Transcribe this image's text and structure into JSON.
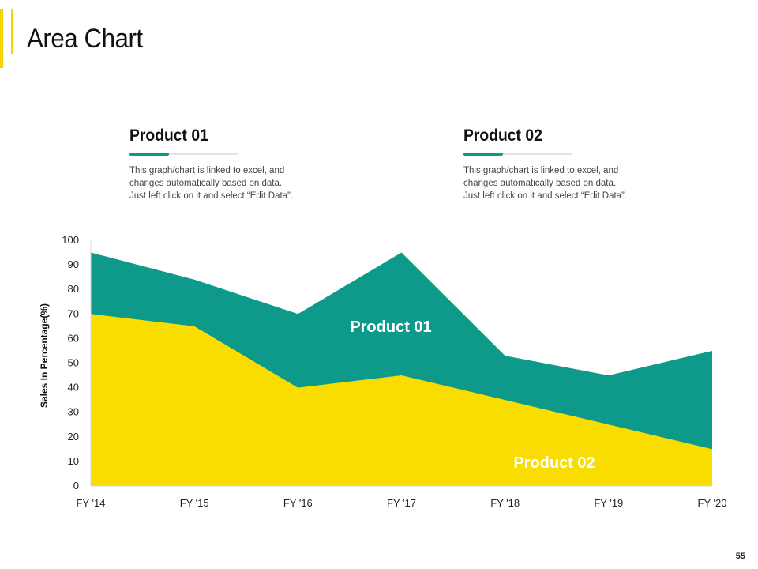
{
  "page": {
    "title": "Area Chart",
    "page_number": "55"
  },
  "info": [
    {
      "title": "Product 01",
      "line1": "This graph/chart is linked to excel, and",
      "line2": "changes automatically based on data.",
      "line3": "Just left click on it and select “Edit Data”."
    },
    {
      "title": "Product 02",
      "line1": "This graph/chart is linked to excel, and",
      "line2": "changes automatically based on data.",
      "line3": "Just left click on it and select “Edit Data”."
    }
  ],
  "colors": {
    "accent": "#F5D300",
    "product01": "#0E9A8A",
    "product02": "#F9DC00"
  },
  "chart_data": {
    "type": "area",
    "stacked": false,
    "categories": [
      "FY '14",
      "FY '15",
      "FY '16",
      "FY '17",
      "FY '18",
      "FY '19",
      "FY '20"
    ],
    "series": [
      {
        "name": "Product 01",
        "values": [
          95,
          84,
          70,
          95,
          53,
          45,
          55
        ]
      },
      {
        "name": "Product 02",
        "values": [
          70,
          65,
          40,
          45,
          35,
          25,
          15
        ]
      }
    ],
    "ylabel": "Sales In Percentage(%)",
    "xlabel": "",
    "ylim": [
      0,
      100
    ],
    "yticks": [
      0,
      10,
      20,
      30,
      40,
      50,
      60,
      70,
      80,
      90,
      100
    ],
    "grid": false
  }
}
